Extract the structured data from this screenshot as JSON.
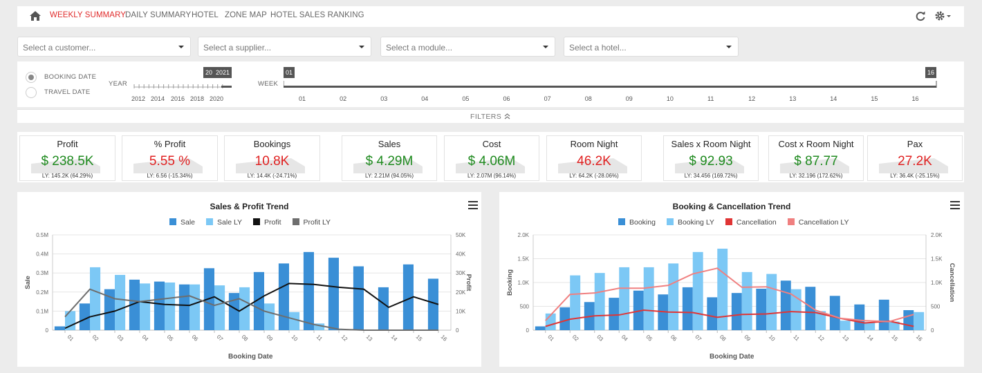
{
  "nav": {
    "tabs": [
      "WEEKLY SUMMARY",
      "DAILY SUMMARY",
      "HOTEL",
      "ZONE MAP",
      "HOTEL SALES RANKING"
    ],
    "active_tab": "WEEKLY SUMMARY"
  },
  "selects": [
    {
      "placeholder": "Select a customer..."
    },
    {
      "placeholder": "Select a supplier..."
    },
    {
      "placeholder": "Select a module..."
    },
    {
      "placeholder": "Select a hotel..."
    }
  ],
  "filters": {
    "date_options": [
      "BOOKING DATE",
      "TRAVEL DATE"
    ],
    "selected_date_option": "BOOKING DATE",
    "year_label": "YEAR",
    "year_ticks": [
      "2012",
      "2014",
      "2016",
      "2018",
      "2020"
    ],
    "year_range": [
      "20",
      "2021"
    ],
    "week_label": "WEEK",
    "week_ticks": [
      "01",
      "02",
      "03",
      "04",
      "05",
      "06",
      "07",
      "08",
      "09",
      "10",
      "11",
      "12",
      "13",
      "14",
      "15",
      "16"
    ],
    "week_range": [
      "01",
      "16"
    ],
    "filters_label": "FILTERS"
  },
  "kpis": [
    {
      "title": "Profit",
      "value": "$ 238.5K",
      "ly": "LY: 145.2K (64.29%)",
      "color": "#1e8a1e"
    },
    {
      "title": "% Profit",
      "value": "5.55 %",
      "ly": "LY: 6.56 (-15.34%)",
      "color": "#e02020"
    },
    {
      "title": "Bookings",
      "value": "10.8K",
      "ly": "LY: 14.4K (-24.71%)",
      "color": "#e02020"
    },
    {
      "title": "Sales",
      "value": "$ 4.29M",
      "ly": "LY: 2.21M (94.05%)",
      "color": "#1e8a1e"
    },
    {
      "title": "Cost",
      "value": "$ 4.06M",
      "ly": "LY: 2.07M (96.14%)",
      "color": "#1e8a1e"
    },
    {
      "title": "Room Night",
      "value": "46.2K",
      "ly": "LY: 64.2K (-28.06%)",
      "color": "#e02020"
    },
    {
      "title": "Sales x Room Night",
      "value": "$ 92.93",
      "ly": "LY: 34.456 (169.72%)",
      "color": "#1e8a1e"
    },
    {
      "title": "Cost x Room Night",
      "value": "$ 87.77",
      "ly": "LY: 32.196 (172.62%)",
      "color": "#1e8a1e"
    },
    {
      "title": "Pax",
      "value": "27.2K",
      "ly": "LY: 36.4K (-25.15%)",
      "color": "#e02020"
    }
  ],
  "chart_data": [
    {
      "type": "bar",
      "title": "Sales & Profit Trend",
      "xlabel": "Booking Date",
      "ylabel": "Sale",
      "y2label": "Profit",
      "categories": [
        "01",
        "02",
        "03",
        "04",
        "05",
        "06",
        "07",
        "08",
        "09",
        "10",
        "11",
        "12",
        "13",
        "14",
        "15",
        "16"
      ],
      "ylim": [
        0,
        500000
      ],
      "y_ticks": [
        "0",
        "0.1M",
        "0.2M",
        "0.3M",
        "0.4M",
        "0.5M"
      ],
      "y2lim": [
        0,
        50000
      ],
      "y2_ticks": [
        "0",
        "10K",
        "20K",
        "30K",
        "40K",
        "50K"
      ],
      "series": [
        {
          "name": "Sale",
          "kind": "bar",
          "axis": "left",
          "color": "#3a8fd6",
          "values": [
            20000,
            140000,
            215000,
            265000,
            255000,
            240000,
            325000,
            195000,
            305000,
            350000,
            410000,
            380000,
            335000,
            225000,
            345000,
            270000
          ]
        },
        {
          "name": "Sale LY",
          "kind": "bar",
          "axis": "left",
          "color": "#7cc8f5",
          "values": [
            100000,
            330000,
            290000,
            245000,
            250000,
            240000,
            235000,
            225000,
            140000,
            95000,
            35000,
            5000,
            0,
            0,
            0,
            0
          ]
        },
        {
          "name": "Profit",
          "kind": "line",
          "axis": "right",
          "color": "#111111",
          "values": [
            1000,
            7000,
            10000,
            15000,
            13500,
            13000,
            17500,
            10000,
            18000,
            24500,
            24000,
            22500,
            21500,
            12000,
            17500,
            13500
          ]
        },
        {
          "name": "Profit LY",
          "kind": "line",
          "axis": "right",
          "color": "#6e6e6e",
          "values": [
            7000,
            21500,
            16500,
            15000,
            16500,
            18000,
            13000,
            16500,
            10000,
            6500,
            3000,
            500,
            0,
            0,
            0,
            0
          ]
        }
      ]
    },
    {
      "type": "bar",
      "title": "Booking & Cancellation Trend",
      "xlabel": "Booking Date",
      "ylabel": "Booking",
      "y2label": "Cancellation",
      "categories": [
        "01",
        "02",
        "03",
        "04",
        "05",
        "06",
        "07",
        "08",
        "09",
        "10",
        "11",
        "12",
        "13",
        "14",
        "15",
        "16"
      ],
      "ylim": [
        0,
        2000
      ],
      "y_ticks": [
        "0",
        "500",
        "1.0K",
        "1.5K",
        "2.0K"
      ],
      "y2lim": [
        0,
        2000
      ],
      "y2_ticks": [
        "0",
        "500",
        "1.0K",
        "1.5K",
        "2.0K"
      ],
      "series": [
        {
          "name": "Booking",
          "kind": "bar",
          "axis": "left",
          "color": "#3a8fd6",
          "values": [
            80,
            480,
            590,
            680,
            830,
            750,
            900,
            690,
            780,
            870,
            1040,
            910,
            720,
            540,
            640,
            420
          ]
        },
        {
          "name": "Booking LY",
          "kind": "bar",
          "axis": "left",
          "color": "#7cc8f5",
          "values": [
            350,
            1150,
            1200,
            1320,
            1320,
            1400,
            1640,
            1710,
            1220,
            1180,
            860,
            400,
            200,
            170,
            180,
            380
          ]
        },
        {
          "name": "Cancellation",
          "kind": "line",
          "axis": "right",
          "color": "#e03535",
          "values": [
            80,
            230,
            300,
            320,
            420,
            380,
            370,
            270,
            330,
            340,
            390,
            370,
            250,
            150,
            190,
            80
          ]
        },
        {
          "name": "Cancellation LY",
          "kind": "line",
          "axis": "right",
          "color": "#f08080",
          "values": [
            200,
            750,
            780,
            880,
            880,
            940,
            1180,
            1300,
            900,
            910,
            760,
            420,
            250,
            200,
            180,
            330
          ]
        }
      ]
    }
  ]
}
